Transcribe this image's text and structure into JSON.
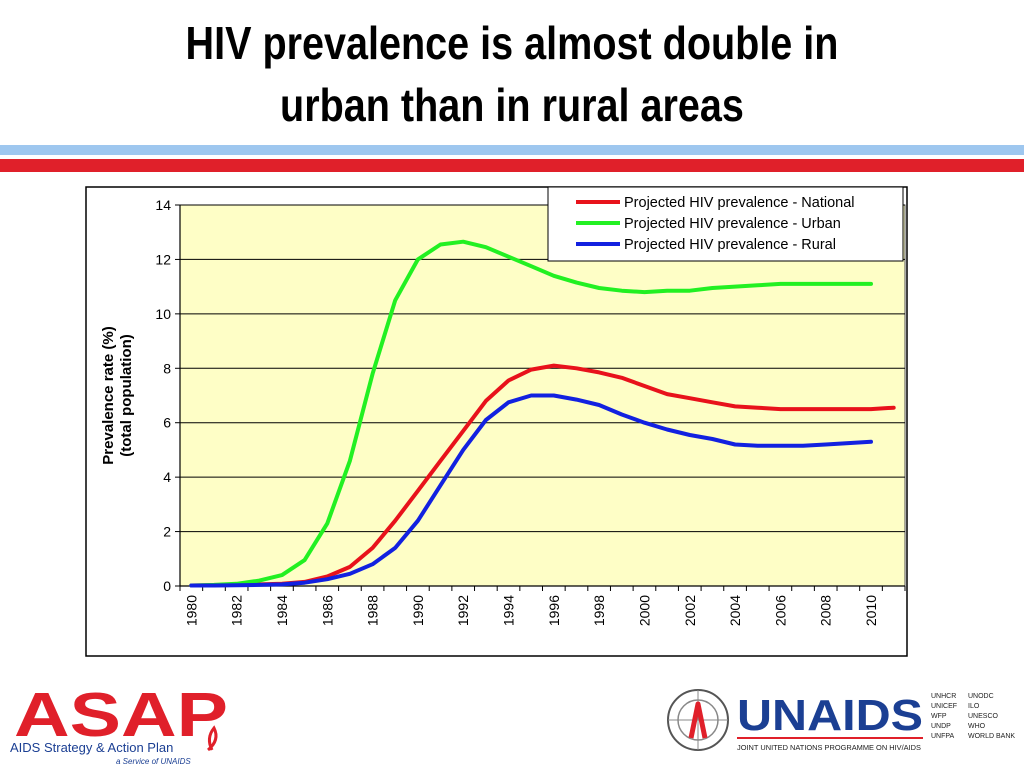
{
  "slide": {
    "title_line1": "HIV prevalence is almost double in",
    "title_line2": "urban than in rural areas"
  },
  "colors": {
    "national": "#e8121b",
    "urban": "#22f022",
    "rural": "#1221e0",
    "plot_bg": "#fefec6",
    "rule_blue": "#9ec7ef",
    "rule_red": "#e0202a",
    "asap_red": "#e0202a",
    "unaids_blue": "#1b3f93"
  },
  "logos": {
    "asap_wordmark": "ASAP",
    "asap_tagline": "AIDS Strategy & Action Plan",
    "asap_subline": "a Service of UNAIDS",
    "unaids_wordmark": "UNAIDS",
    "unaids_subtitle": "JOINT UNITED NATIONS PROGRAMME ON HIV/AIDS",
    "cosponsors_col1": [
      "UNHCR",
      "UNICEF",
      "WFP",
      "UNDP",
      "UNFPA"
    ],
    "cosponsors_col2": [
      "UNODC",
      "ILO",
      "UNESCO",
      "WHO",
      "WORLD BANK"
    ]
  },
  "chart_data": {
    "type": "line",
    "title": "",
    "xlabel": "",
    "ylabel_line1": "Prevalence rate (%)",
    "ylabel_line2": "(total population)",
    "xlim": [
      1979.5,
      2011.5
    ],
    "ylim": [
      0,
      14
    ],
    "yticks": [
      "0",
      "2",
      "4",
      "6",
      "8",
      "10",
      "12",
      "14"
    ],
    "xticks": [
      "1980",
      "1982",
      "1984",
      "1986",
      "1988",
      "1990",
      "1992",
      "1994",
      "1996",
      "1998",
      "2000",
      "2002",
      "2004",
      "2006",
      "2008",
      "2010"
    ],
    "grid": "horizontal",
    "legend_position": "top-right",
    "x": [
      1980,
      1981,
      1982,
      1983,
      1984,
      1985,
      1986,
      1987,
      1988,
      1989,
      1990,
      1991,
      1992,
      1993,
      1994,
      1995,
      1996,
      1997,
      1998,
      1999,
      2000,
      2001,
      2002,
      2003,
      2004,
      2005,
      2006,
      2007,
      2008,
      2009,
      2010,
      2011
    ],
    "series": [
      {
        "name": "Projected HIV prevalence - National",
        "color": "#e8121b",
        "values": [
          0.02,
          0.03,
          0.04,
          0.06,
          0.08,
          0.15,
          0.35,
          0.7,
          1.4,
          2.4,
          3.5,
          4.6,
          5.7,
          6.8,
          7.55,
          7.95,
          8.1,
          8.0,
          7.85,
          7.65,
          7.35,
          7.05,
          6.9,
          6.75,
          6.6,
          6.55,
          6.5,
          6.5,
          6.5,
          6.5,
          6.5,
          6.55
        ]
      },
      {
        "name": "Projected HIV prevalence - Urban",
        "color": "#22f022",
        "values": [
          0.02,
          0.04,
          0.08,
          0.2,
          0.4,
          0.95,
          2.3,
          4.6,
          7.8,
          10.5,
          12.0,
          12.55,
          12.65,
          12.45,
          12.1,
          11.75,
          11.4,
          11.15,
          10.95,
          10.85,
          10.8,
          10.85,
          10.85,
          10.95,
          11.0,
          11.05,
          11.1,
          11.1,
          11.1,
          11.1,
          11.1,
          null
        ]
      },
      {
        "name": "Projected HIV prevalence - Rural",
        "color": "#1221e0",
        "values": [
          0.02,
          0.02,
          0.03,
          0.04,
          0.06,
          0.12,
          0.25,
          0.45,
          0.8,
          1.4,
          2.4,
          3.7,
          5.0,
          6.1,
          6.75,
          7.0,
          7.0,
          6.85,
          6.65,
          6.3,
          6.0,
          5.75,
          5.55,
          5.4,
          5.2,
          5.15,
          5.15,
          5.15,
          5.2,
          5.25,
          5.3,
          null
        ]
      }
    ]
  }
}
